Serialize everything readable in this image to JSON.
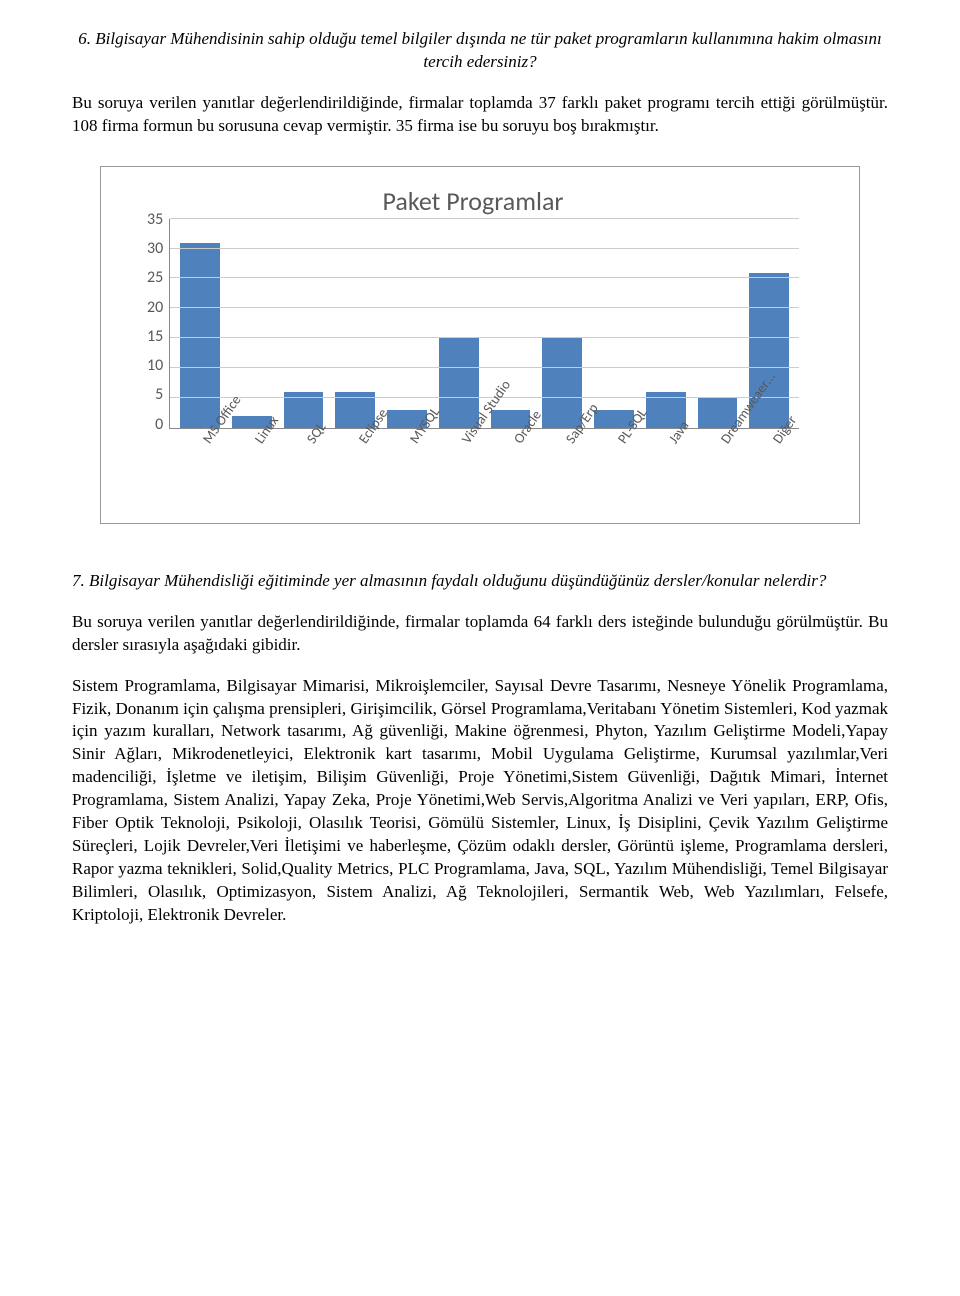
{
  "q6": {
    "heading": "6. Bilgisayar Mühendisinin sahip olduğu temel bilgiler dışında ne tür paket programların kullanımına hakim olmasını tercih edersiniz?",
    "para": "Bu soruya verilen yanıtlar değerlendirildiğinde, firmalar toplamda 37 farklı paket programı tercih ettiği görülmüştür. 108 firma formun bu sorusuna cevap vermiştir. 35 firma ise bu soruyu boş bırakmıştır."
  },
  "chart": {
    "title": "Paket Programlar",
    "bar_color": "#4f81bd",
    "grid_color": "#cccccc",
    "axis_color": "#888888",
    "text_color": "#595959",
    "background_color": "#ffffff",
    "y_max": 35,
    "y_ticks": [
      35,
      30,
      25,
      20,
      15,
      10,
      5,
      0
    ],
    "categories": [
      "MS Office",
      "Linux",
      "SQL",
      "Eclipse",
      "MYSQL",
      "Visual Studio",
      "Oracle",
      "Sap/Erp",
      "PL-SQL",
      "Java",
      "Dreamweaer…",
      "Diğer"
    ],
    "values": [
      31,
      2,
      6,
      6,
      3,
      15,
      3,
      15,
      3,
      6,
      5,
      26
    ]
  },
  "q7": {
    "heading": "7. Bilgisayar Mühendisliği eğitiminde yer almasının faydalı olduğunu düşündüğünüz dersler/konular nelerdir?",
    "para1": "Bu soruya verilen yanıtlar değerlendirildiğinde, firmalar toplamda 64 farklı ders isteğinde bulunduğu görülmüştür. Bu dersler sırasıyla aşağıdaki gibidir.",
    "para2": "Sistem Programlama, Bilgisayar Mimarisi, Mikroişlemciler, Sayısal Devre Tasarımı, Nesneye Yönelik Programlama, Fizik, Donanım için çalışma prensipleri, Girişimcilik, Görsel Programlama,Veritabanı Yönetim Sistemleri, Kod yazmak için yazım kuralları, Network tasarımı, Ağ güvenliği, Makine öğrenmesi, Phyton, Yazılım Geliştirme Modeli,Yapay Sinir Ağları, Mikrodenetleyici, Elektronik kart tasarımı, Mobil Uygulama Geliştirme, Kurumsal yazılımlar,Veri madenciliği, İşletme ve iletişim, Bilişim Güvenliği, Proje Yönetimi,Sistem Güvenliği, Dağıtık Mimari, İnternet Programlama, Sistem Analizi, Yapay Zeka, Proje Yönetimi,Web Servis,Algoritma Analizi ve Veri yapıları, ERP, Ofis, Fiber Optik Teknoloji, Psikoloji, Olasılık Teorisi, Gömülü Sistemler, Linux, İş Disiplini, Çevik Yazılım Geliştirme Süreçleri, Lojik Devreler,Veri İletişimi ve haberleşme, Çözüm odaklı dersler, Görüntü işleme, Programlama dersleri, Rapor yazma teknikleri, Solid,Quality Metrics, PLC Programlama, Java, SQL, Yazılım Mühendisliği, Temel Bilgisayar Bilimleri, Olasılık, Optimizasyon, Sistem Analizi, Ağ Teknolojileri, Sermantik Web, Web Yazılımları, Felsefe, Kriptoloji, Elektronik Devreler."
  }
}
